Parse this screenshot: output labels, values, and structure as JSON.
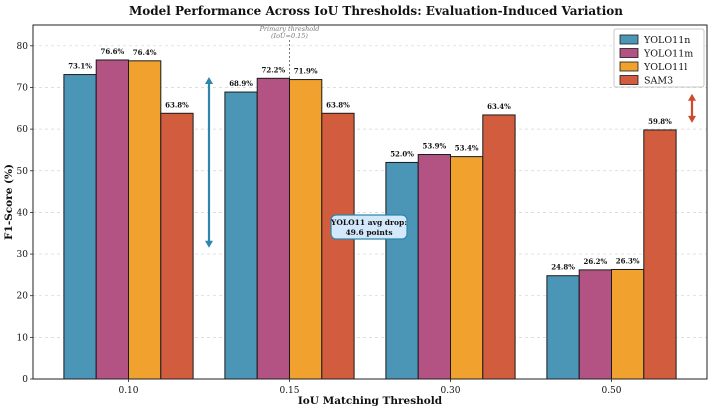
{
  "chart_data": {
    "type": "bar",
    "title": "Model Performance Across IoU Thresholds: Evaluation-Induced Variation",
    "xlabel": "IoU Matching Threshold",
    "ylabel": "F1-Score (%)",
    "ylim": [
      0,
      85
    ],
    "yticks": [
      "0",
      "10",
      "20",
      "30",
      "40",
      "50",
      "60",
      "70",
      "80"
    ],
    "grid": true,
    "legend_position": "top-right",
    "categories": [
      "0.10",
      "0.15",
      "0.30",
      "0.50"
    ],
    "series": [
      {
        "name": "YOLO11n",
        "color": "#4b96b7",
        "values": [
          73.1,
          68.9,
          52.0,
          24.8
        ],
        "labels": [
          "73.1%",
          "68.9%",
          "52.0%",
          "24.8%"
        ]
      },
      {
        "name": "YOLO11m",
        "color": "#b25384",
        "values": [
          76.6,
          72.2,
          53.9,
          26.2
        ],
        "labels": [
          "76.6%",
          "72.2%",
          "53.9%",
          "26.2%"
        ]
      },
      {
        "name": "YOLO11l",
        "color": "#f0a12e",
        "values": [
          76.4,
          71.9,
          53.4,
          26.3
        ],
        "labels": [
          "76.4%",
          "71.9%",
          "53.4%",
          "26.3%"
        ]
      },
      {
        "name": "SAM3",
        "color": "#d25c3e",
        "values": [
          63.8,
          63.8,
          63.4,
          59.8
        ],
        "labels": [
          "63.8%",
          "63.8%",
          "63.4%",
          "59.8%"
        ]
      }
    ],
    "annotations": {
      "primary_threshold": {
        "line1": "Primary threshold",
        "line2": "(IoU=0.15)",
        "at": 0.15
      },
      "yolo_drop": {
        "line1": "YOLO11 avg drop:",
        "line2": "49.6 points"
      },
      "yolo_arrow": {
        "from": 31.5,
        "to": 72.5,
        "color": "#2e86ab"
      },
      "sam_arrow": {
        "from": 61.5,
        "to": 68.5,
        "color": "#d1492d"
      }
    }
  }
}
